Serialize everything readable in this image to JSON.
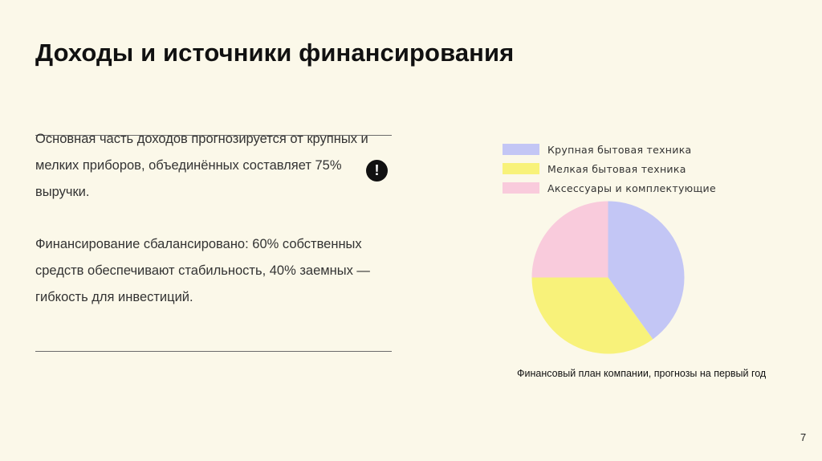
{
  "slide": {
    "title": "Доходы и источники финансирования",
    "paragraph_1": "Основная часть доходов прогнозируется от крупных и мелких приборов, объединённых составляет 75% выручки.",
    "paragraph_2": "Финансирование сбалансировано: 60% собственных средств обеспечивают стабильность, 40% заемных — гибкость для инвестиций.",
    "alert_glyph": "!",
    "caption": "Финансовый план компании, прогнозы на первый год",
    "page_number": "7"
  },
  "chart_data": {
    "type": "pie",
    "categories": [
      "Крупная бытовая техника",
      "Мелкая бытовая техника",
      "Аксессуары и комплектующие"
    ],
    "values": [
      40,
      35,
      25
    ],
    "colors": [
      "#c3c6f5",
      "#f8f27a",
      "#f9cbdc"
    ],
    "start_angle_deg": 0,
    "direction": "clockwise",
    "legend_position": "top"
  }
}
